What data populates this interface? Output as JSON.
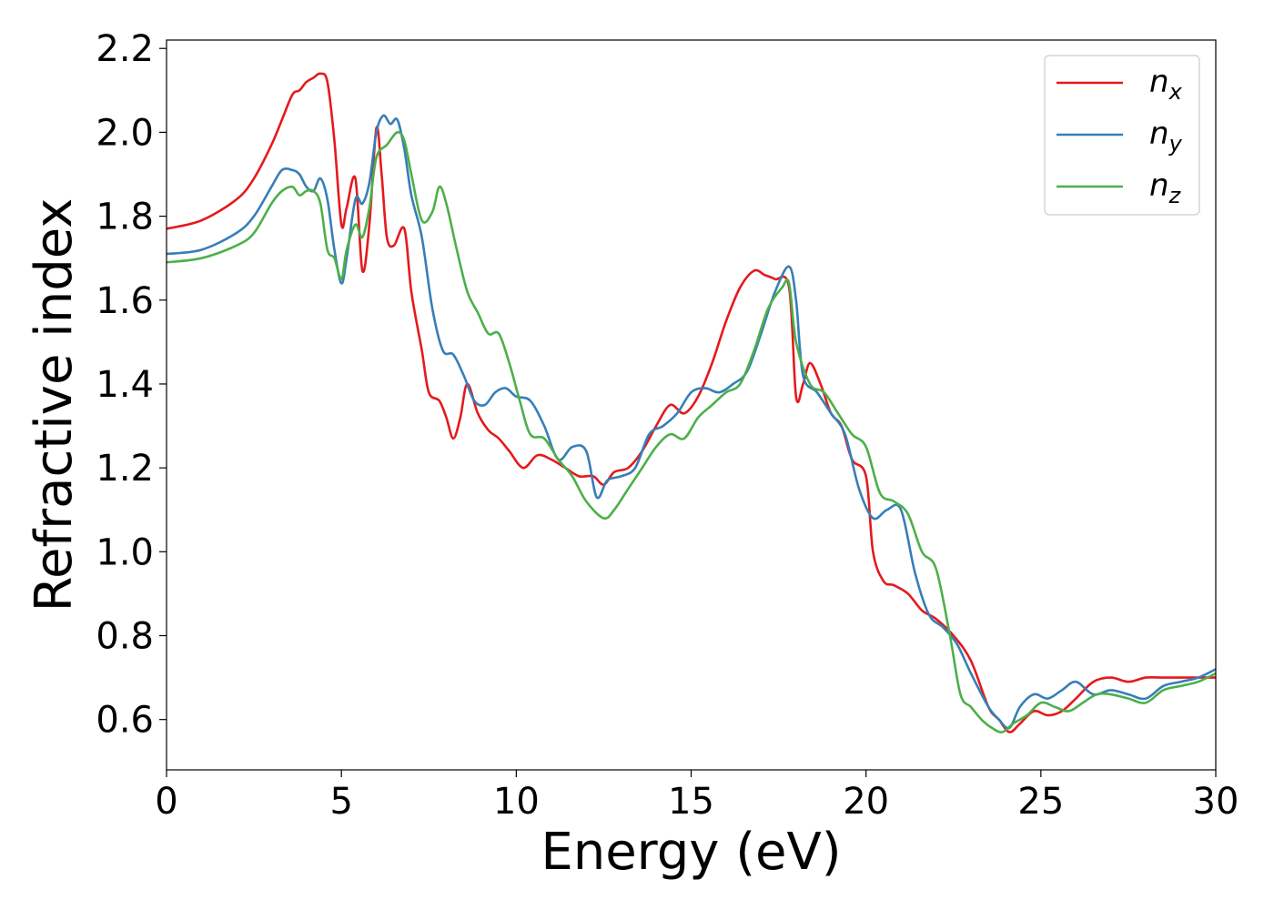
{
  "chart_data": {
    "type": "line",
    "title": "",
    "xlabel": "Energy (eV)",
    "ylabel": "Refractive index",
    "xlim": [
      0,
      30
    ],
    "ylim": [
      0.48,
      2.22
    ],
    "xticks": [
      0,
      5,
      10,
      15,
      20,
      25,
      30
    ],
    "xtick_labels": [
      "0",
      "5",
      "10",
      "15",
      "20",
      "25",
      "30"
    ],
    "yticks": [
      0.6,
      0.8,
      1.0,
      1.2,
      1.4,
      1.6,
      1.8,
      2.0,
      2.2
    ],
    "ytick_labels": [
      "0.6",
      "0.8",
      "1.0",
      "1.2",
      "1.4",
      "1.6",
      "1.8",
      "2.0",
      "2.2"
    ],
    "grid": false,
    "legend_position": "top-right",
    "series": [
      {
        "name": "n_x",
        "label_base": "n",
        "label_sub": "x",
        "color": "#e41a1c",
        "x": [
          0,
          1,
          2,
          2.5,
          3,
          3.3,
          3.6,
          3.8,
          4.0,
          4.2,
          4.4,
          4.6,
          4.8,
          5.0,
          5.15,
          5.4,
          5.6,
          5.8,
          6.0,
          6.15,
          6.3,
          6.5,
          6.8,
          7.0,
          7.3,
          7.5,
          7.8,
          8.0,
          8.2,
          8.4,
          8.6,
          8.9,
          9.2,
          9.5,
          9.8,
          10.2,
          10.6,
          11.0,
          11.4,
          11.8,
          12.2,
          12.5,
          12.8,
          13.2,
          13.6,
          14.0,
          14.4,
          14.8,
          15.2,
          15.6,
          16.0,
          16.4,
          16.8,
          17.1,
          17.4,
          17.8,
          18.0,
          18.2,
          18.4,
          18.7,
          19.0,
          19.3,
          19.6,
          20.0,
          20.2,
          20.5,
          20.8,
          21.2,
          21.6,
          22.0,
          22.5,
          23.0,
          23.5,
          23.8,
          24.1,
          24.4,
          24.8,
          25.2,
          25.6,
          26.0,
          26.5,
          27.0,
          27.5,
          28.0,
          28.5,
          29.0,
          29.5,
          30.0
        ],
        "y": [
          1.77,
          1.79,
          1.84,
          1.89,
          1.97,
          2.03,
          2.09,
          2.1,
          2.12,
          2.13,
          2.14,
          2.12,
          1.98,
          1.78,
          1.82,
          1.89,
          1.67,
          1.78,
          2.01,
          1.9,
          1.75,
          1.73,
          1.77,
          1.62,
          1.48,
          1.38,
          1.36,
          1.32,
          1.27,
          1.32,
          1.4,
          1.33,
          1.29,
          1.27,
          1.24,
          1.2,
          1.23,
          1.22,
          1.2,
          1.18,
          1.18,
          1.16,
          1.19,
          1.2,
          1.24,
          1.3,
          1.35,
          1.33,
          1.37,
          1.45,
          1.55,
          1.63,
          1.67,
          1.66,
          1.65,
          1.63,
          1.37,
          1.4,
          1.45,
          1.4,
          1.33,
          1.3,
          1.22,
          1.18,
          1.0,
          0.93,
          0.92,
          0.9,
          0.86,
          0.84,
          0.8,
          0.74,
          0.63,
          0.6,
          0.57,
          0.59,
          0.62,
          0.61,
          0.62,
          0.65,
          0.69,
          0.7,
          0.69,
          0.7,
          0.7,
          0.7,
          0.7,
          0.7
        ]
      },
      {
        "name": "n_y",
        "label_base": "n",
        "label_sub": "y",
        "color": "#377eb8",
        "x": [
          0,
          1,
          2,
          2.5,
          3,
          3.3,
          3.6,
          3.8,
          4.0,
          4.2,
          4.4,
          4.6,
          4.8,
          5.0,
          5.15,
          5.4,
          5.6,
          5.8,
          6.0,
          6.2,
          6.4,
          6.6,
          6.8,
          7.0,
          7.3,
          7.6,
          7.9,
          8.2,
          8.5,
          8.8,
          9.1,
          9.4,
          9.7,
          10.0,
          10.4,
          10.8,
          11.2,
          11.6,
          12.0,
          12.3,
          12.6,
          13.0,
          13.4,
          13.8,
          14.2,
          14.6,
          15.0,
          15.4,
          15.8,
          16.2,
          16.6,
          17.0,
          17.4,
          17.8,
          18.0,
          18.2,
          18.6,
          19.0,
          19.4,
          19.8,
          20.2,
          20.6,
          21.0,
          21.4,
          21.8,
          22.2,
          22.6,
          23.0,
          23.5,
          23.8,
          24.1,
          24.4,
          24.8,
          25.2,
          25.6,
          26.0,
          26.5,
          27.0,
          27.5,
          28.0,
          28.5,
          29.0,
          29.5,
          30.0
        ],
        "y": [
          1.71,
          1.72,
          1.76,
          1.8,
          1.87,
          1.91,
          1.91,
          1.9,
          1.87,
          1.86,
          1.89,
          1.84,
          1.72,
          1.64,
          1.7,
          1.84,
          1.83,
          1.88,
          2.0,
          2.04,
          2.02,
          2.03,
          1.96,
          1.85,
          1.75,
          1.58,
          1.48,
          1.47,
          1.42,
          1.36,
          1.35,
          1.38,
          1.39,
          1.37,
          1.36,
          1.3,
          1.22,
          1.25,
          1.24,
          1.13,
          1.17,
          1.18,
          1.2,
          1.28,
          1.3,
          1.33,
          1.38,
          1.39,
          1.38,
          1.4,
          1.43,
          1.52,
          1.62,
          1.68,
          1.6,
          1.42,
          1.38,
          1.33,
          1.28,
          1.15,
          1.08,
          1.1,
          1.1,
          0.95,
          0.85,
          0.82,
          0.78,
          0.71,
          0.63,
          0.6,
          0.58,
          0.63,
          0.66,
          0.65,
          0.67,
          0.69,
          0.66,
          0.67,
          0.66,
          0.65,
          0.68,
          0.69,
          0.7,
          0.72
        ]
      },
      {
        "name": "n_z",
        "label_base": "n",
        "label_sub": "z",
        "color": "#4daf4a",
        "x": [
          0,
          1,
          2,
          2.5,
          3,
          3.3,
          3.6,
          3.8,
          4.0,
          4.2,
          4.4,
          4.6,
          4.8,
          5.0,
          5.15,
          5.4,
          5.6,
          5.8,
          6.0,
          6.3,
          6.6,
          6.8,
          7.0,
          7.3,
          7.6,
          7.8,
          8.0,
          8.3,
          8.6,
          8.9,
          9.2,
          9.5,
          9.8,
          10.1,
          10.4,
          10.8,
          11.2,
          11.6,
          12.0,
          12.5,
          12.8,
          13.2,
          13.6,
          14.0,
          14.4,
          14.8,
          15.2,
          15.6,
          16.0,
          16.4,
          16.8,
          17.2,
          17.6,
          17.8,
          18.0,
          18.4,
          18.8,
          19.2,
          19.6,
          20.0,
          20.4,
          20.8,
          21.2,
          21.6,
          22.0,
          22.4,
          22.7,
          23.0,
          23.3,
          23.6,
          23.9,
          24.2,
          24.6,
          25.0,
          25.4,
          25.8,
          26.2,
          26.6,
          27.0,
          27.5,
          28.0,
          28.5,
          29.0,
          29.5,
          30.0
        ],
        "y": [
          1.69,
          1.7,
          1.73,
          1.76,
          1.83,
          1.86,
          1.87,
          1.85,
          1.86,
          1.86,
          1.83,
          1.72,
          1.7,
          1.65,
          1.72,
          1.78,
          1.75,
          1.82,
          1.94,
          1.97,
          2.0,
          1.98,
          1.9,
          1.79,
          1.81,
          1.87,
          1.83,
          1.72,
          1.62,
          1.57,
          1.52,
          1.52,
          1.45,
          1.36,
          1.28,
          1.27,
          1.22,
          1.18,
          1.12,
          1.08,
          1.1,
          1.15,
          1.2,
          1.25,
          1.28,
          1.27,
          1.32,
          1.35,
          1.38,
          1.4,
          1.48,
          1.58,
          1.63,
          1.64,
          1.5,
          1.4,
          1.38,
          1.33,
          1.28,
          1.25,
          1.14,
          1.12,
          1.09,
          1.0,
          0.96,
          0.8,
          0.66,
          0.63,
          0.6,
          0.58,
          0.57,
          0.59,
          0.61,
          0.64,
          0.63,
          0.62,
          0.64,
          0.66,
          0.66,
          0.65,
          0.64,
          0.67,
          0.68,
          0.69,
          0.71
        ]
      }
    ]
  }
}
